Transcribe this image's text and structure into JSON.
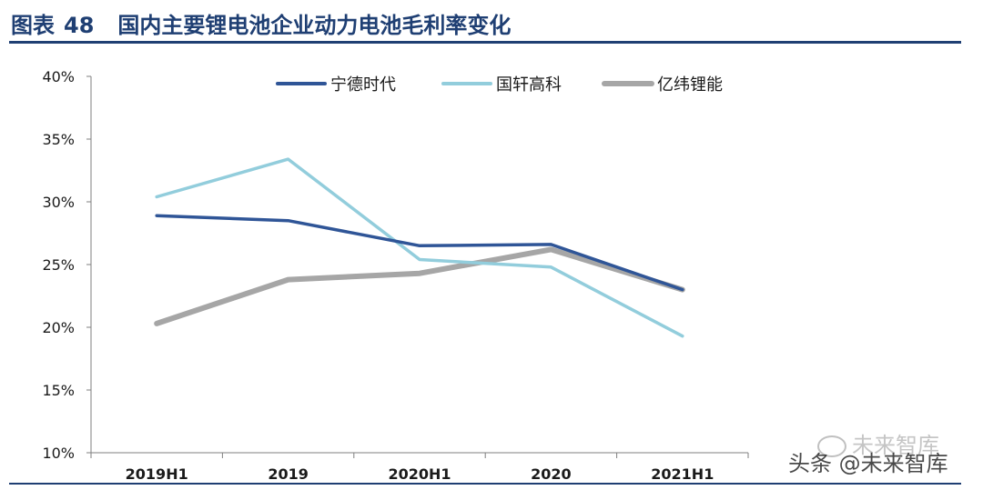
{
  "header": {
    "figure_label": "图表",
    "figure_number": "48",
    "title": "国内主要锂电池企业动力电池毛利率变化"
  },
  "watermark": {
    "wechat_text": "未来智库",
    "toutiao_text": "头条 @未来智库"
  },
  "colors": {
    "title": "#1f3f73",
    "axis": "#7f7f7f"
  },
  "chart_data": {
    "type": "line",
    "title": "",
    "xlabel": "",
    "ylabel": "",
    "categories": [
      "2019H1",
      "2019",
      "2020H1",
      "2020",
      "2021H1"
    ],
    "y_ticks": [
      "10%",
      "15%",
      "20%",
      "25%",
      "30%",
      "35%",
      "40%"
    ],
    "ylim": [
      10,
      40
    ],
    "legend_position": "top",
    "grid": false,
    "series": [
      {
        "name": "宁德时代",
        "color": "#2f5597",
        "values": [
          28.9,
          28.5,
          26.5,
          26.6,
          23.0
        ]
      },
      {
        "name": "国轩高科",
        "color": "#92cddc",
        "values": [
          30.4,
          33.4,
          25.4,
          24.8,
          19.3
        ]
      },
      {
        "name": "亿纬锂能",
        "color": "#a6a6a6",
        "values": [
          20.3,
          23.8,
          24.3,
          26.2,
          23.0
        ]
      }
    ]
  }
}
